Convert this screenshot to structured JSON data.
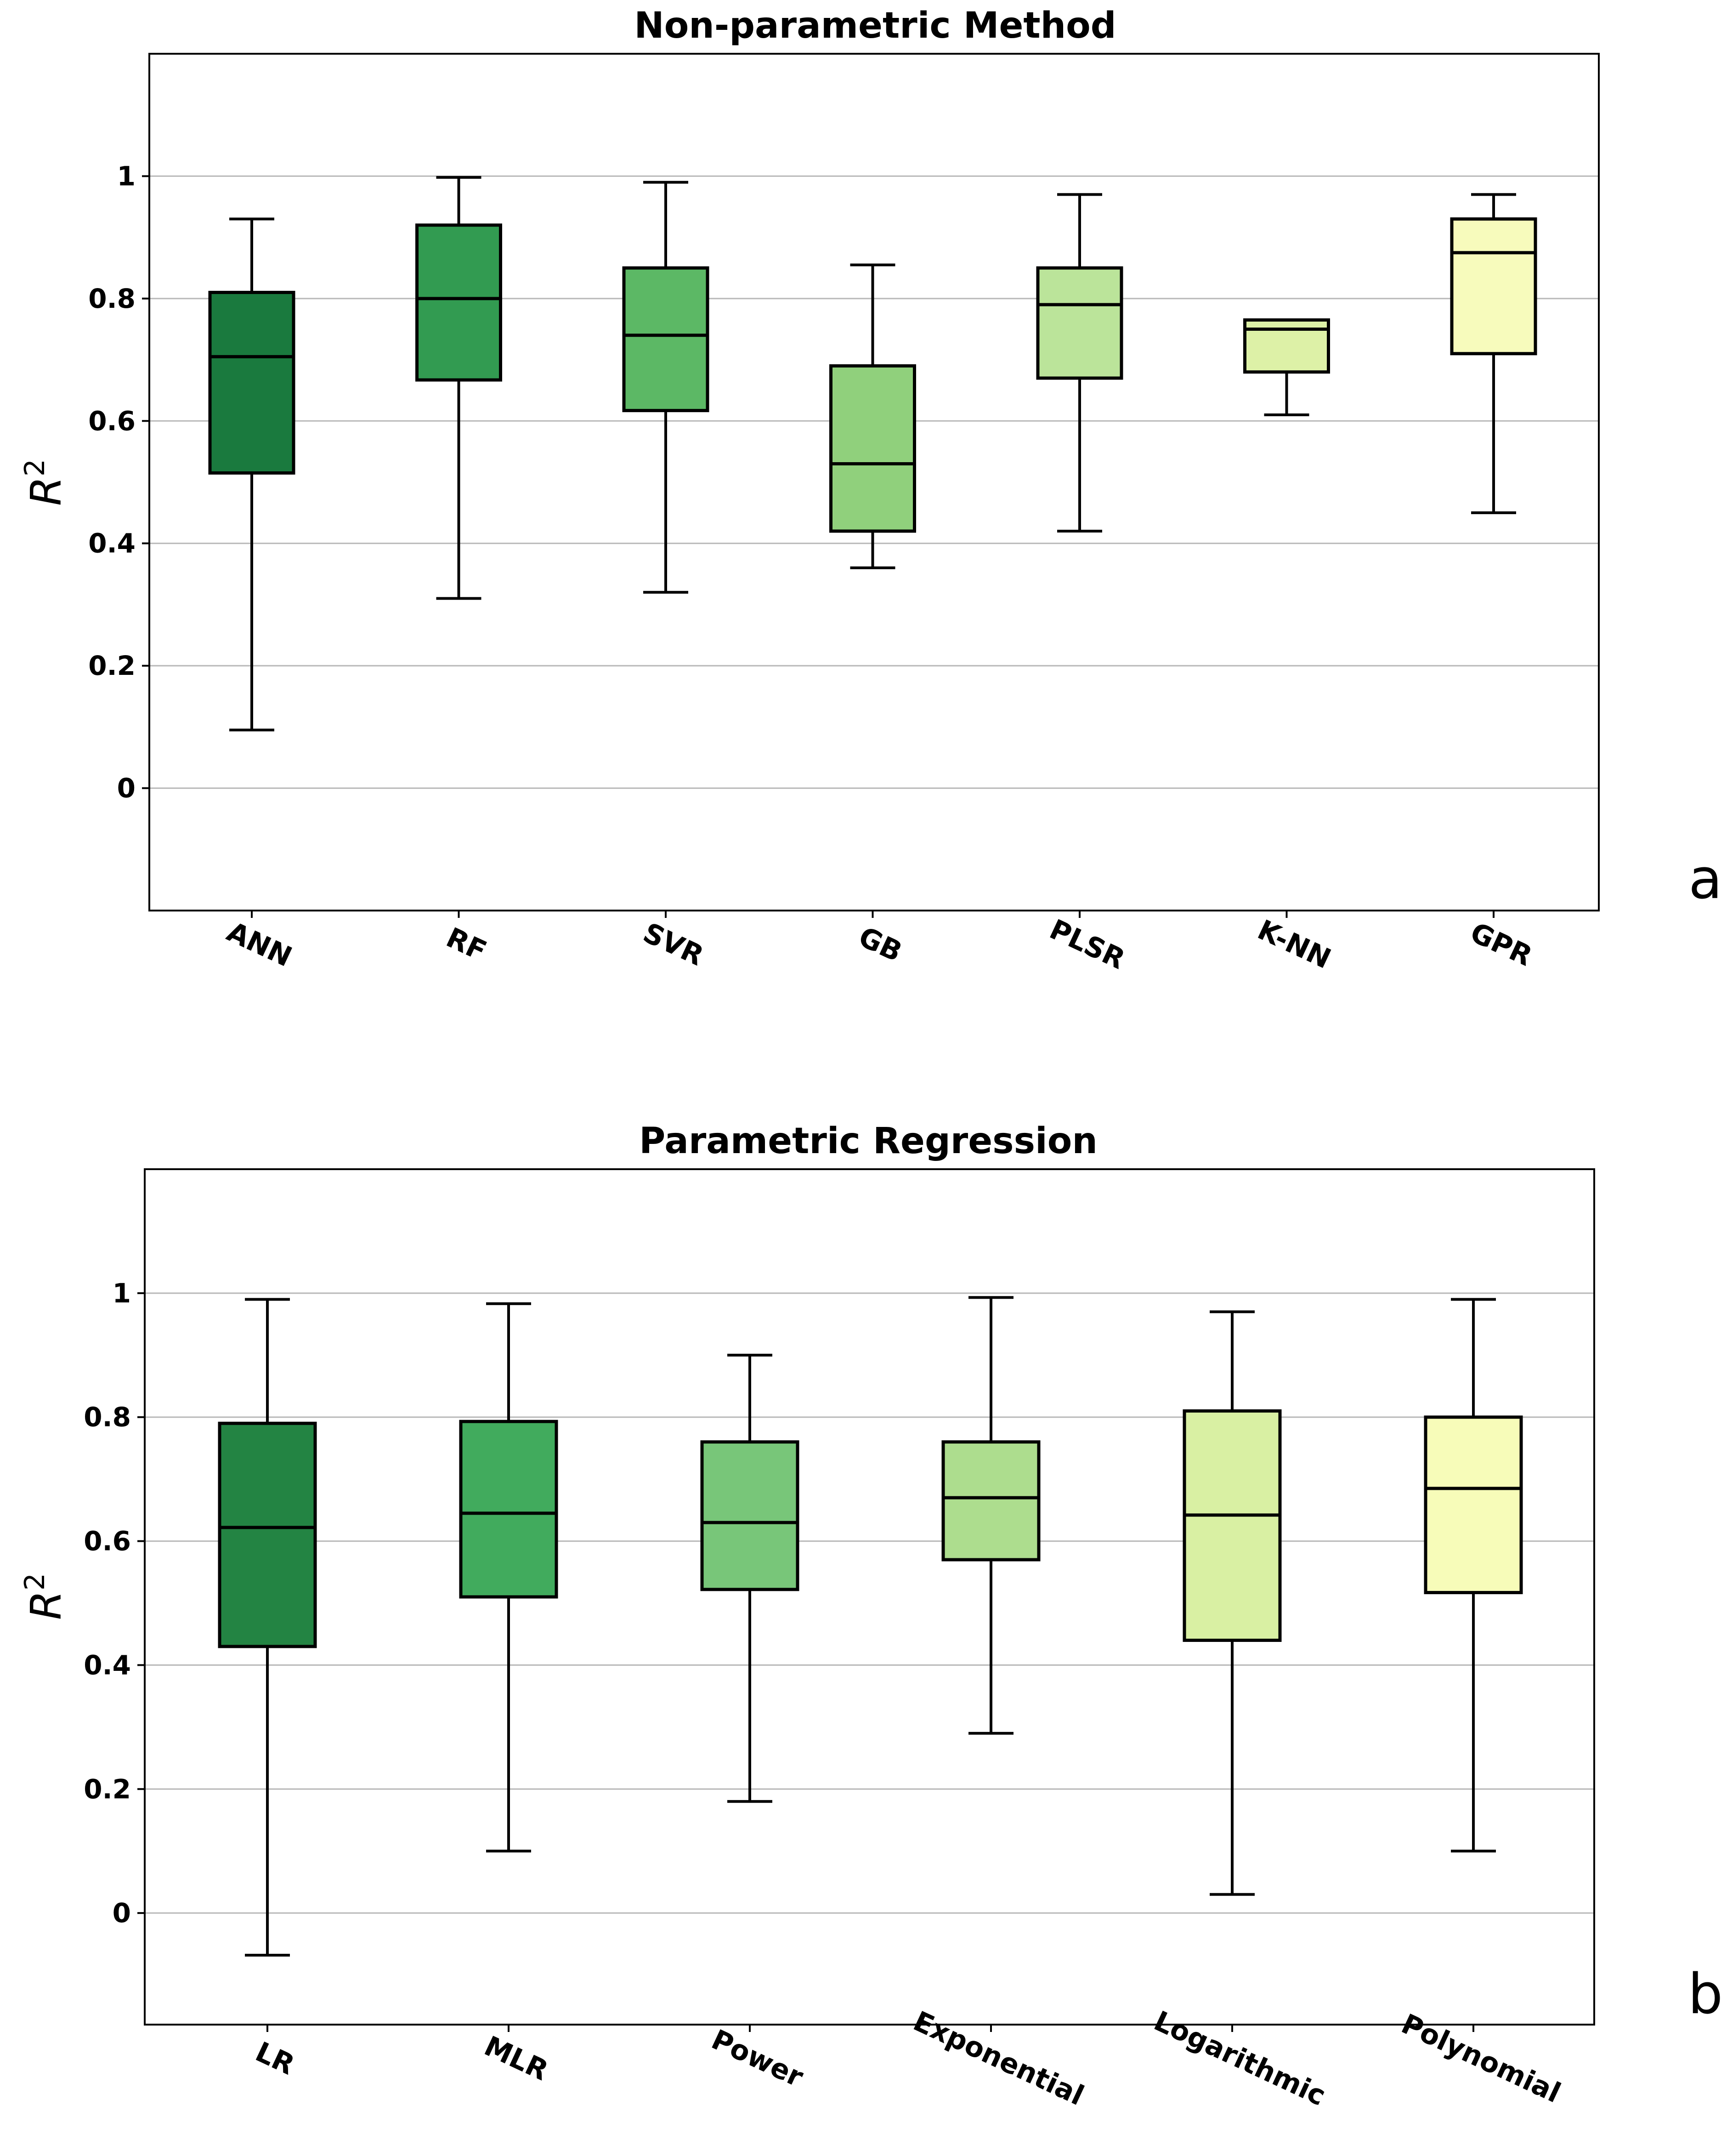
{
  "chart_data": [
    {
      "type": "box",
      "panel_label": "a",
      "title": "Non-parametric Method",
      "ylabel_base": "R",
      "ylabel_sup": "2",
      "xlabel": "",
      "ylim": [
        -0.2,
        1.2
      ],
      "yticks": [
        0,
        0.2,
        0.4,
        0.6,
        0.8,
        1
      ],
      "ytick_labels": [
        "0",
        "0.2",
        "0.4",
        "0.6",
        "0.8",
        "1"
      ],
      "grid": "horizontal",
      "categories": [
        "ANN",
        "RF",
        "SVR",
        "GB",
        "PLSR",
        "K-NN",
        "GPR"
      ],
      "boxes": [
        {
          "label": "ANN",
          "whisker_low": 0.095,
          "q1": 0.515,
          "median": 0.705,
          "q3": 0.81,
          "whisker_high": 0.93,
          "color": "#1a7a3e"
        },
        {
          "label": "RF",
          "whisker_low": 0.31,
          "q1": 0.667,
          "median": 0.8,
          "q3": 0.92,
          "whisker_high": 0.998,
          "color": "#329b51"
        },
        {
          "label": "SVR",
          "whisker_low": 0.32,
          "q1": 0.617,
          "median": 0.74,
          "q3": 0.85,
          "whisker_high": 0.99,
          "color": "#5cb865"
        },
        {
          "label": "GB",
          "whisker_low": 0.36,
          "q1": 0.42,
          "median": 0.53,
          "q3": 0.69,
          "whisker_high": 0.855,
          "color": "#90d07c"
        },
        {
          "label": "PLSR",
          "whisker_low": 0.42,
          "q1": 0.67,
          "median": 0.79,
          "q3": 0.85,
          "whisker_high": 0.97,
          "color": "#bbe49a"
        },
        {
          "label": "K-NN",
          "whisker_low": 0.61,
          "q1": 0.68,
          "median": 0.75,
          "q3": 0.765,
          "whisker_high": 0.765,
          "color": "#ddf1a7"
        },
        {
          "label": "GPR",
          "whisker_low": 0.45,
          "q1": 0.71,
          "median": 0.875,
          "q3": 0.93,
          "whisker_high": 0.97,
          "color": "#f7fbbc"
        }
      ]
    },
    {
      "type": "box",
      "panel_label": "b",
      "title": "Parametric Regression",
      "ylabel_base": "R",
      "ylabel_sup": "2",
      "xlabel": "",
      "ylim": [
        -0.18,
        1.2
      ],
      "yticks": [
        0,
        0.2,
        0.4,
        0.6,
        0.8,
        1
      ],
      "ytick_labels": [
        "0",
        "0.2",
        "0.4",
        "0.6",
        "0.8",
        "1"
      ],
      "grid": "horizontal",
      "categories": [
        "LR",
        "MLR",
        "Power",
        "Exponential",
        "Logarithmic",
        "Polynomial"
      ],
      "boxes": [
        {
          "label": "LR",
          "whisker_low": -0.068,
          "q1": 0.43,
          "median": 0.622,
          "q3": 0.79,
          "whisker_high": 0.99,
          "color": "#238443"
        },
        {
          "label": "MLR",
          "whisker_low": 0.1,
          "q1": 0.51,
          "median": 0.645,
          "q3": 0.793,
          "whisker_high": 0.983,
          "color": "#41ab5d"
        },
        {
          "label": "Power",
          "whisker_low": 0.18,
          "q1": 0.522,
          "median": 0.63,
          "q3": 0.76,
          "whisker_high": 0.9,
          "color": "#78c679"
        },
        {
          "label": "Exponential",
          "whisker_low": 0.29,
          "q1": 0.57,
          "median": 0.67,
          "q3": 0.76,
          "whisker_high": 0.993,
          "color": "#addd8e"
        },
        {
          "label": "Logarithmic",
          "whisker_low": 0.03,
          "q1": 0.44,
          "median": 0.642,
          "q3": 0.81,
          "whisker_high": 0.97,
          "color": "#d9f0a3"
        },
        {
          "label": "Polynomial",
          "whisker_low": 0.1,
          "q1": 0.517,
          "median": 0.685,
          "q3": 0.8,
          "whisker_high": 0.99,
          "color": "#f7fcb9"
        }
      ]
    }
  ]
}
